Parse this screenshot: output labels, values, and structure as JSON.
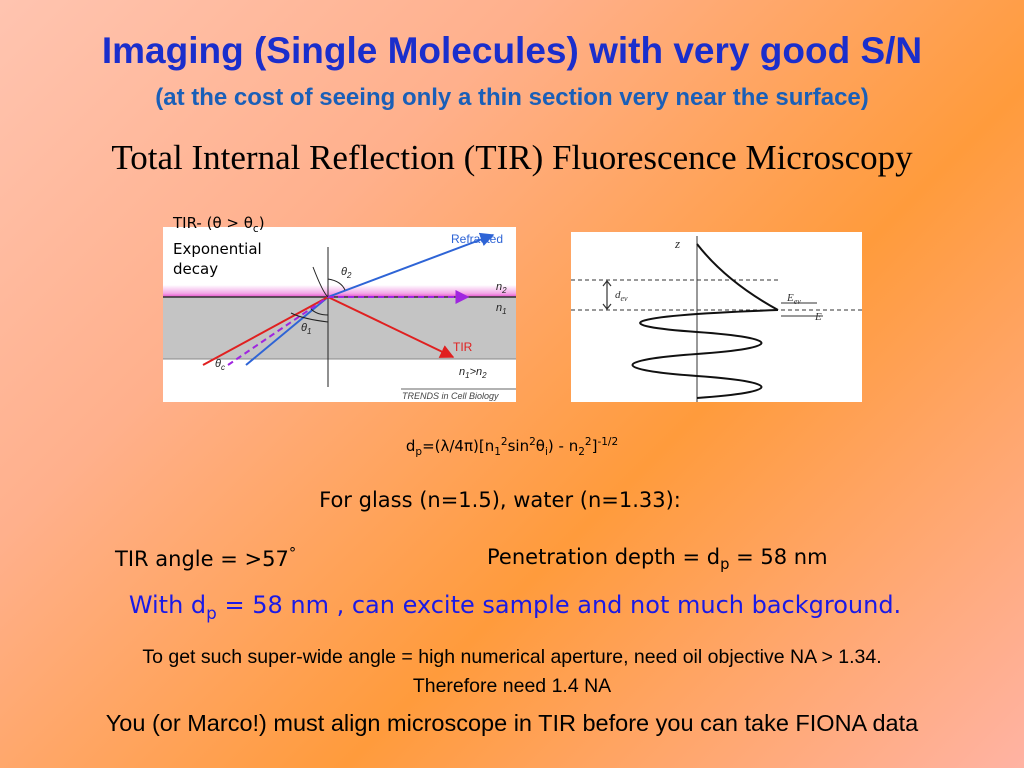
{
  "title": "Imaging (Single Molecules) with very good S/N",
  "subtitle": "(at the cost of seeing only a thin section very near the surface)",
  "heading": "Total Internal Reflection (TIR) Fluorescence Microscopy",
  "tir_label": {
    "prefix": "TIR- (",
    "theta": "θ",
    "gt": " > ",
    "theta_c": "θ",
    "c": "c",
    "close": ")",
    "line2": "Exponential",
    "line3": "decay"
  },
  "figure_left": {
    "refracted": "Refracted",
    "tir": "TIR",
    "n2": "n",
    "n2_sub": "2",
    "n1": "n",
    "n1_sub": "1",
    "n_ineq": "n",
    "n_ineq_sub1": "1",
    "n_ineq_gt": ">n",
    "n_ineq_sub2": "2",
    "theta1": "θ",
    "theta1_sub": "1",
    "theta2": "θ",
    "theta2_sub": "2",
    "thetac": "θ",
    "thetac_sub": "c",
    "credit": "TRENDS in Cell Biology"
  },
  "figure_right": {
    "z": "z",
    "dev": "d",
    "dev_sub": "ev",
    "eev": "E",
    "eev_sub": "ev",
    "e": "E"
  },
  "formula": {
    "d": "d",
    "p": "p",
    "eq": "=(",
    "lambda": "λ",
    "over4pi": "/4",
    "pi": "π",
    "mid": ")[n",
    "one": "1",
    "two_a": "2",
    "sin": "sin",
    "two_b": "2",
    "theta": "θ",
    "i": "i",
    "minus": ") -  n",
    "two_c": "2",
    "two_d": "2",
    "close": "]",
    "exp": "-1/2"
  },
  "glass_water": "For glass (n=1.5), water (n=1.33):",
  "tir_angle": "TIR angle = >57",
  "deg": "°",
  "pen": {
    "text": "Penetration depth = d",
    "sub": "p",
    "value": " = 58 nm"
  },
  "with_dp": {
    "pre": "With d",
    "sub": "p",
    "post": " = 58 nm , can excite sample and not much background."
  },
  "need_line1": "To get such super-wide angle = high numerical aperture, need oil objective NA > 1.34.",
  "need_line2": "Therefore need  1.4 NA",
  "marco": "You (or Marco!) must align microscope in TIR before you can take FIONA data"
}
